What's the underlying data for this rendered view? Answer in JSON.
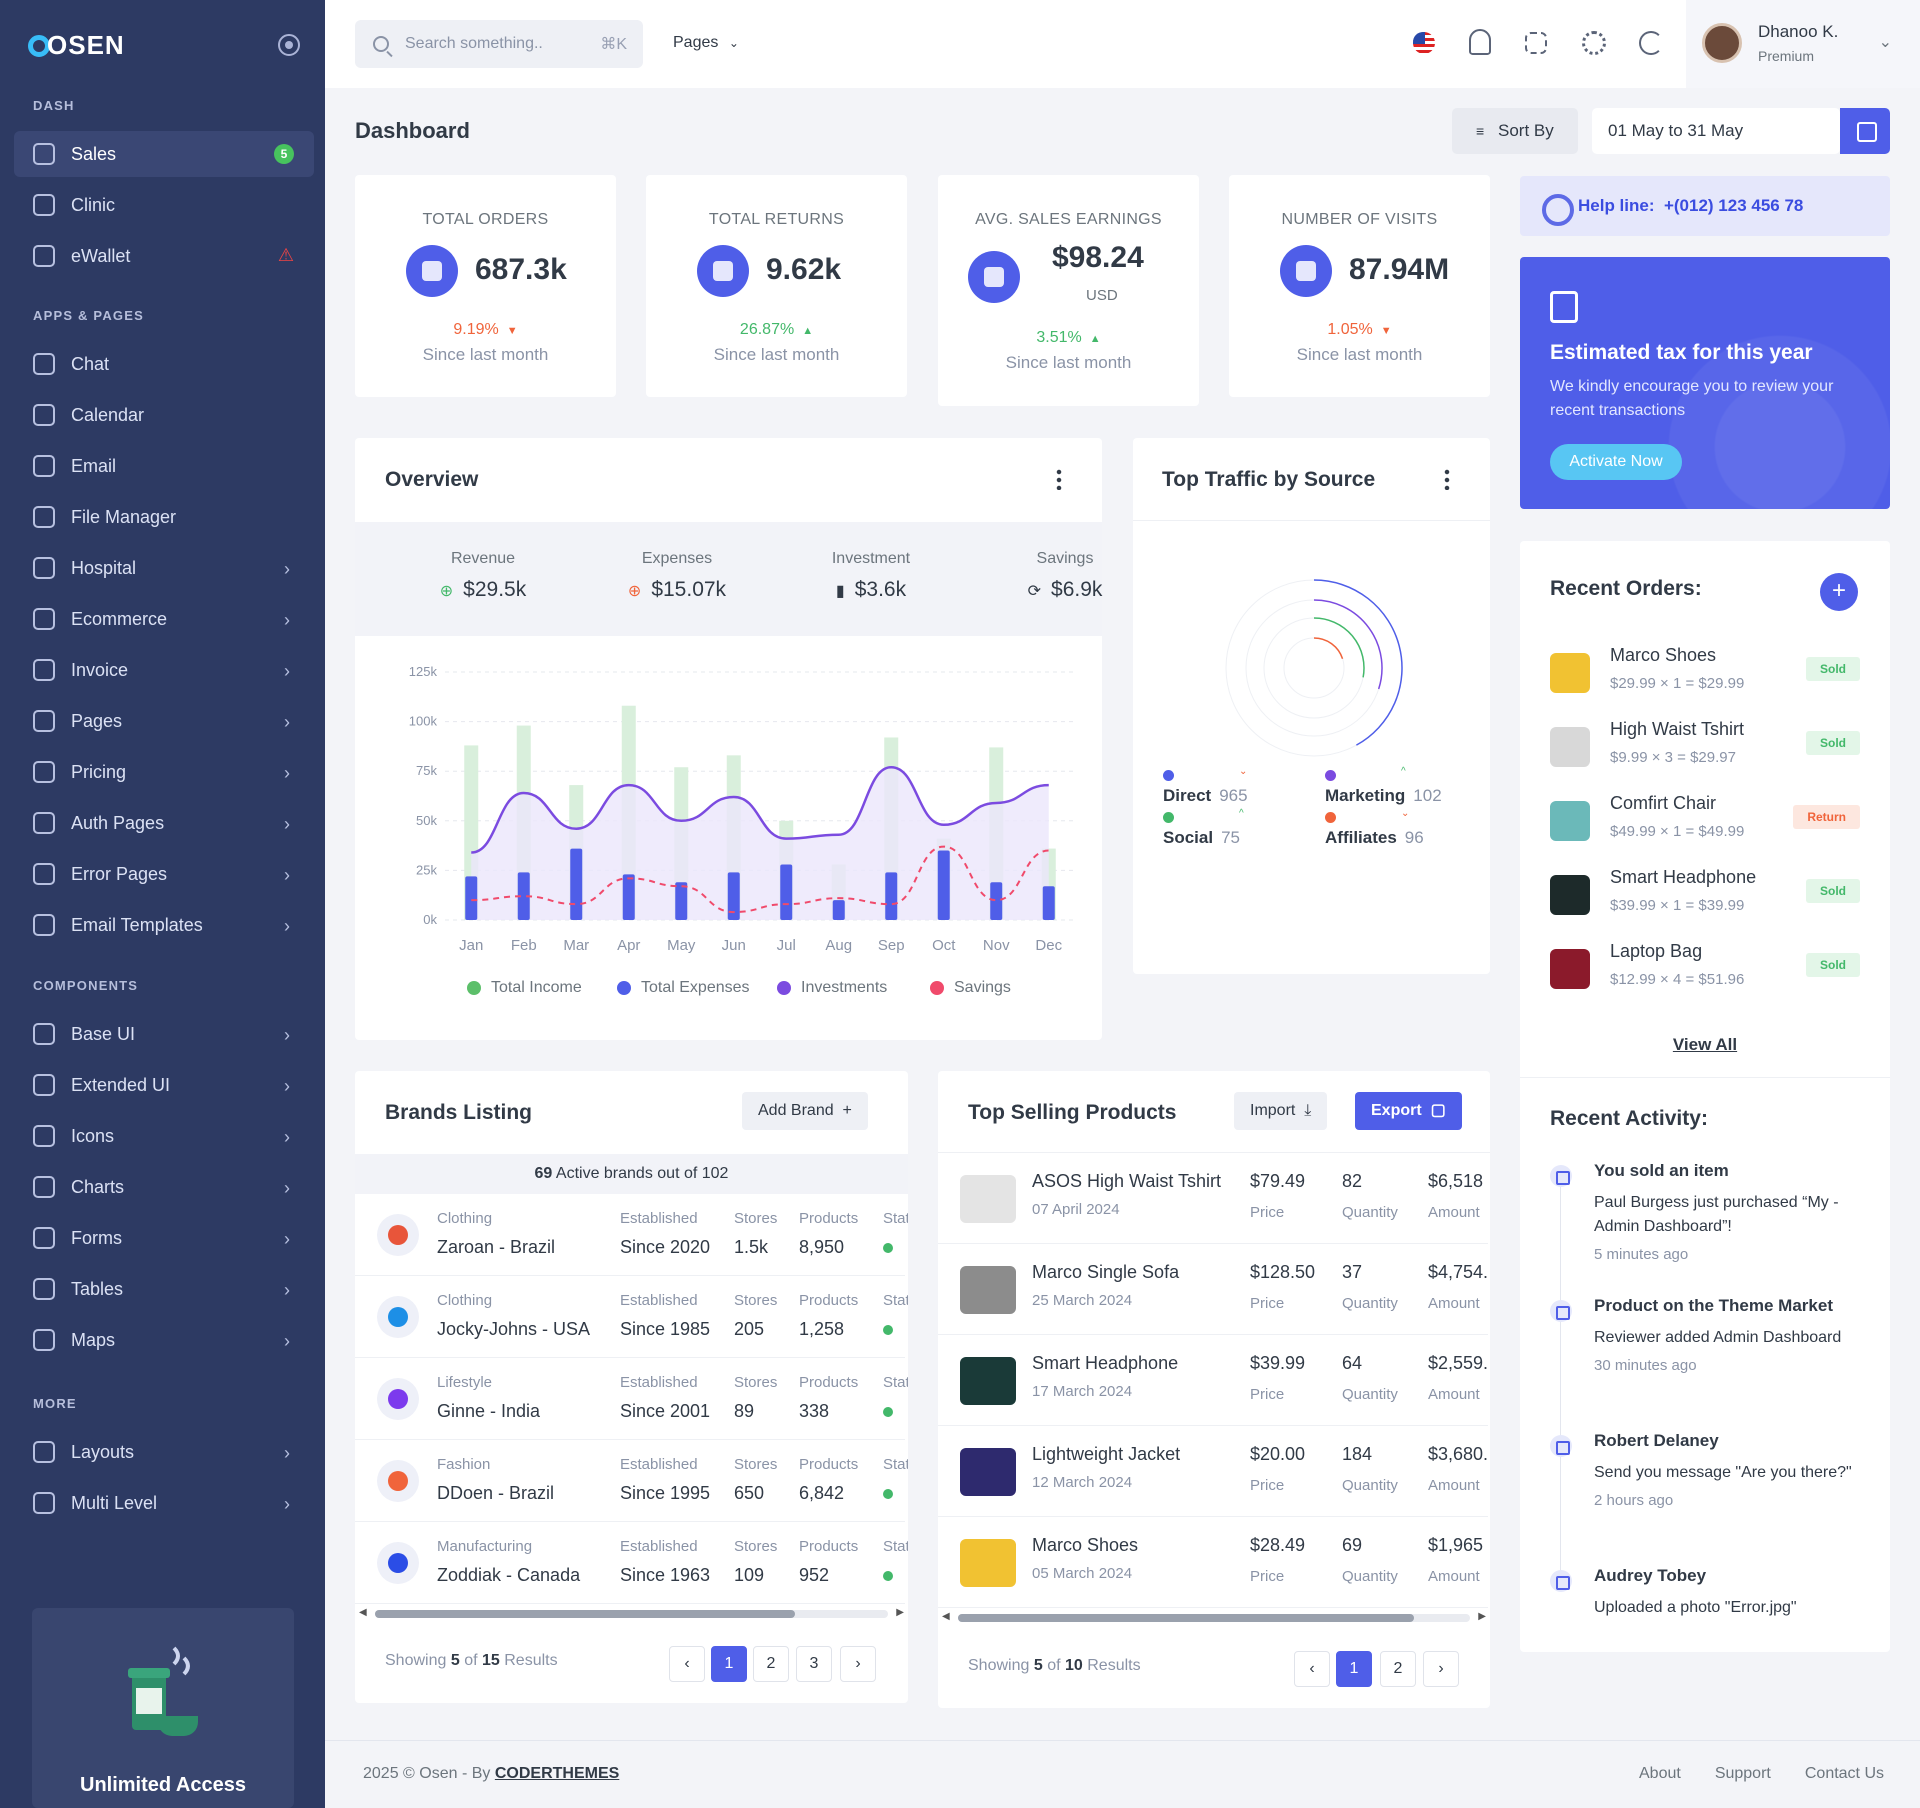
{
  "brand": {
    "logo": "OSEN"
  },
  "sidebar": {
    "sections": [
      {
        "title": "DASH",
        "items": [
          {
            "label": "Sales",
            "badge": "5",
            "active": true,
            "icon": "dashboard-icon"
          },
          {
            "label": "Clinic",
            "icon": "hospital-icon"
          },
          {
            "label": "eWallet",
            "alert": "⚠",
            "icon": "wallet-icon"
          }
        ]
      },
      {
        "title": "APPS & PAGES",
        "items": [
          {
            "label": "Chat",
            "icon": "chat-icon"
          },
          {
            "label": "Calendar",
            "icon": "calendar-icon"
          },
          {
            "label": "Email",
            "icon": "inbox-icon"
          },
          {
            "label": "File Manager",
            "icon": "folder-icon"
          },
          {
            "label": "Hospital",
            "icon": "medical-icon",
            "arrow": true
          },
          {
            "label": "Ecommerce",
            "icon": "basket-icon",
            "arrow": true
          },
          {
            "label": "Invoice",
            "icon": "file-icon",
            "arrow": true
          },
          {
            "label": "Pages",
            "icon": "pages-icon",
            "arrow": true
          },
          {
            "label": "Pricing",
            "icon": "dollar-file-icon",
            "arrow": true
          },
          {
            "label": "Auth Pages",
            "icon": "lock-icon",
            "arrow": true
          },
          {
            "label": "Error Pages",
            "icon": "server-icon",
            "arrow": true
          },
          {
            "label": "Email Templates",
            "icon": "template-icon",
            "arrow": true
          }
        ]
      },
      {
        "title": "COMPONENTS",
        "items": [
          {
            "label": "Base UI",
            "icon": "palette-icon",
            "arrow": true
          },
          {
            "label": "Extended UI",
            "icon": "smile-icon",
            "arrow": true
          },
          {
            "label": "Icons",
            "icon": "feather-icon",
            "arrow": true
          },
          {
            "label": "Charts",
            "icon": "chart-circle-icon",
            "arrow": true
          },
          {
            "label": "Forms",
            "icon": "forms-icon",
            "arrow": true
          },
          {
            "label": "Tables",
            "icon": "table-icon",
            "arrow": true
          },
          {
            "label": "Maps",
            "icon": "map-pin-icon",
            "arrow": true
          }
        ]
      },
      {
        "title": "MORE",
        "items": [
          {
            "label": "Layouts",
            "icon": "layout-icon",
            "arrow": true
          },
          {
            "label": "Multi Level",
            "icon": "multilevel-icon",
            "arrow": true
          }
        ]
      }
    ],
    "promo": {
      "title": "Unlimited Access"
    }
  },
  "topbar": {
    "search_placeholder": "Search something..",
    "search_shortcut": "⌘K",
    "pages_label": "Pages",
    "user": {
      "name": "Dhanoo K.",
      "role": "Premium"
    }
  },
  "header": {
    "title": "Dashboard",
    "sort_label": "Sort By",
    "date_range": "01 May to 31 May"
  },
  "stats": [
    {
      "label": "TOTAL ORDERS",
      "value": "687.3k",
      "unit": "",
      "change": "9.19%",
      "trend": "down",
      "sub": "Since last month"
    },
    {
      "label": "TOTAL RETURNS",
      "value": "9.62k",
      "unit": "",
      "change": "26.87%",
      "trend": "up",
      "sub": "Since last month"
    },
    {
      "label": "AVG. SALES EARNINGS",
      "value": "$98.24",
      "unit": "USD",
      "change": "3.51%",
      "trend": "up",
      "sub": "Since last month"
    },
    {
      "label": "NUMBER OF VISITS",
      "value": "87.94M",
      "unit": "",
      "change": "1.05%",
      "trend": "down",
      "sub": "Since last month"
    }
  ],
  "helpline": {
    "label": "Help line:",
    "phone": "+(012) 123 456 78"
  },
  "tax": {
    "title": "Estimated tax for this year",
    "desc": "We kindly encourage you to review your recent transactions",
    "button": "Activate Now"
  },
  "overview": {
    "title": "Overview",
    "stats": [
      {
        "label": "Revenue",
        "value": "$29.5k"
      },
      {
        "label": "Expenses",
        "value": "$15.07k"
      },
      {
        "label": "Investment",
        "value": "$3.6k"
      },
      {
        "label": "Savings",
        "value": "$6.9k"
      }
    ]
  },
  "chart_data": [
    {
      "type": "bar",
      "categories": [
        "Jan",
        "Feb",
        "Mar",
        "Apr",
        "May",
        "Jun",
        "Jul",
        "Aug",
        "Sep",
        "Oct",
        "Nov",
        "Dec"
      ],
      "ylim": [
        0,
        125000
      ],
      "yticks": [
        "0k",
        "25k",
        "50k",
        "75k",
        "100k",
        "125k"
      ],
      "series": [
        {
          "name": "Total Income",
          "type": "bar",
          "color": "#d9efdc",
          "values": [
            88000,
            98000,
            68000,
            108000,
            77000,
            83000,
            50000,
            28000,
            92000,
            41000,
            87000,
            36000
          ]
        },
        {
          "name": "Total Expenses",
          "type": "bar",
          "color": "#4f5ee8",
          "values": [
            22000,
            24000,
            36000,
            23000,
            19000,
            24000,
            28000,
            10000,
            24000,
            35000,
            19000,
            17000
          ]
        },
        {
          "name": "Investments",
          "type": "line",
          "color": "#7b4be0",
          "values": [
            34000,
            64000,
            46000,
            68000,
            50000,
            62000,
            41000,
            43000,
            77000,
            48000,
            59000,
            68000
          ]
        },
        {
          "name": "Savings",
          "type": "line",
          "color": "#f04a6b",
          "dashed": true,
          "values": [
            10000,
            12000,
            8000,
            21000,
            17000,
            4000,
            8000,
            11000,
            8000,
            37000,
            10000,
            35000
          ]
        }
      ],
      "legend": "bottom"
    },
    {
      "type": "radial",
      "title": "Top Traffic by Source",
      "series": [
        {
          "name": "Direct",
          "value": 965,
          "color": "#4f5ee8",
          "trend": "down"
        },
        {
          "name": "Marketing",
          "value": 102,
          "color": "#7b4be0",
          "trend": "up"
        },
        {
          "name": "Social",
          "value": 75,
          "color": "#43b86a",
          "trend": "up"
        },
        {
          "name": "Affiliates",
          "value": 96,
          "color": "#f0643b",
          "trend": "down"
        }
      ]
    }
  ],
  "traffic": {
    "title": "Top Traffic by Source"
  },
  "recent_orders": {
    "title": "Recent Orders:",
    "items": [
      {
        "name": "Marco Shoes",
        "calc": "$29.99 × 1 = $29.99",
        "status": "Sold",
        "icon": "shoe-icon"
      },
      {
        "name": "High Waist Tshirt",
        "calc": "$9.99 × 3 = $29.97",
        "status": "Sold",
        "icon": "tshirt-icon"
      },
      {
        "name": "Comfirt Chair",
        "calc": "$49.99 × 1 = $49.99",
        "status": "Return",
        "icon": "chair-icon"
      },
      {
        "name": "Smart Headphone",
        "calc": "$39.99 × 1 = $39.99",
        "status": "Sold",
        "icon": "headphone-icon"
      },
      {
        "name": "Laptop Bag",
        "calc": "$12.99 × 4 = $51.96",
        "status": "Sold",
        "icon": "bag-icon"
      }
    ],
    "view_all": "View All"
  },
  "recent_activity": {
    "title": "Recent Activity:",
    "items": [
      {
        "title": "You sold an item",
        "desc": "Paul Burgess just purchased “My - Admin Dashboard”!",
        "time": "5 minutes ago"
      },
      {
        "title": "Product on the Theme Market",
        "desc": "Reviewer added Admin Dashboard",
        "time": "30 minutes ago"
      },
      {
        "title": "Robert Delaney",
        "desc": "Send you message \"Are you there?\"",
        "time": "2 hours ago"
      },
      {
        "title": "Audrey Tobey",
        "desc": "Uploaded a photo \"Error.jpg\"",
        "time": ""
      }
    ]
  },
  "brands": {
    "title": "Brands Listing",
    "add_button": "Add Brand",
    "summary_count": "69",
    "summary_text": "Active brands out of 102",
    "headers": {
      "established": "Established",
      "stores": "Stores",
      "products": "Products",
      "status": "Stat"
    },
    "rows": [
      {
        "category": "Clothing",
        "name": "Zaroan - Brazil",
        "since": "Since 2020",
        "stores": "1.5k",
        "products": "8,950",
        "logo_color": "#e8553a"
      },
      {
        "category": "Clothing",
        "name": "Jocky-Johns - USA",
        "since": "Since 1985",
        "stores": "205",
        "products": "1,258",
        "logo_color": "#1d8fe6"
      },
      {
        "category": "Lifestyle",
        "name": "Ginne - India",
        "since": "Since 2001",
        "stores": "89",
        "products": "338",
        "logo_color": "#7c3aed"
      },
      {
        "category": "Fashion",
        "name": "DDoen - Brazil",
        "since": "Since 1995",
        "stores": "650",
        "products": "6,842",
        "logo_color": "#f0643b"
      },
      {
        "category": "Manufacturing",
        "name": "Zoddiak - Canada",
        "since": "Since 1963",
        "stores": "109",
        "products": "952",
        "logo_color": "#2b4de6"
      }
    ],
    "showing": {
      "prefix": "Showing",
      "count": "5",
      "mid": "of",
      "total": "15",
      "suffix": "Results"
    },
    "pages": [
      "‹",
      "1",
      "2",
      "3",
      "›"
    ]
  },
  "products": {
    "title": "Top Selling Products",
    "import_label": "Import",
    "export_label": "Export",
    "col_labels": {
      "price": "Price",
      "quantity": "Quantity",
      "amount": "Amount"
    },
    "rows": [
      {
        "name": "ASOS High Waist Tshirt",
        "date": "07 April 2024",
        "price": "$79.49",
        "qty": "82",
        "amount": "$6,518"
      },
      {
        "name": "Marco Single Sofa",
        "date": "25 March 2024",
        "price": "$128.50",
        "qty": "37",
        "amount": "$4,754."
      },
      {
        "name": "Smart Headphone",
        "date": "17 March 2024",
        "price": "$39.99",
        "qty": "64",
        "amount": "$2,559."
      },
      {
        "name": "Lightweight Jacket",
        "date": "12 March 2024",
        "price": "$20.00",
        "qty": "184",
        "amount": "$3,680."
      },
      {
        "name": "Marco Shoes",
        "date": "05 March 2024",
        "price": "$28.49",
        "qty": "69",
        "amount": "$1,965"
      }
    ],
    "showing": {
      "prefix": "Showing",
      "count": "5",
      "mid": "of",
      "total": "10",
      "suffix": "Results"
    },
    "pages": [
      "‹",
      "1",
      "2",
      "›"
    ]
  },
  "footer": {
    "copy": "2025 © Osen - By",
    "author": "CODERTHEMES",
    "links": [
      "About",
      "Support",
      "Contact Us"
    ]
  }
}
